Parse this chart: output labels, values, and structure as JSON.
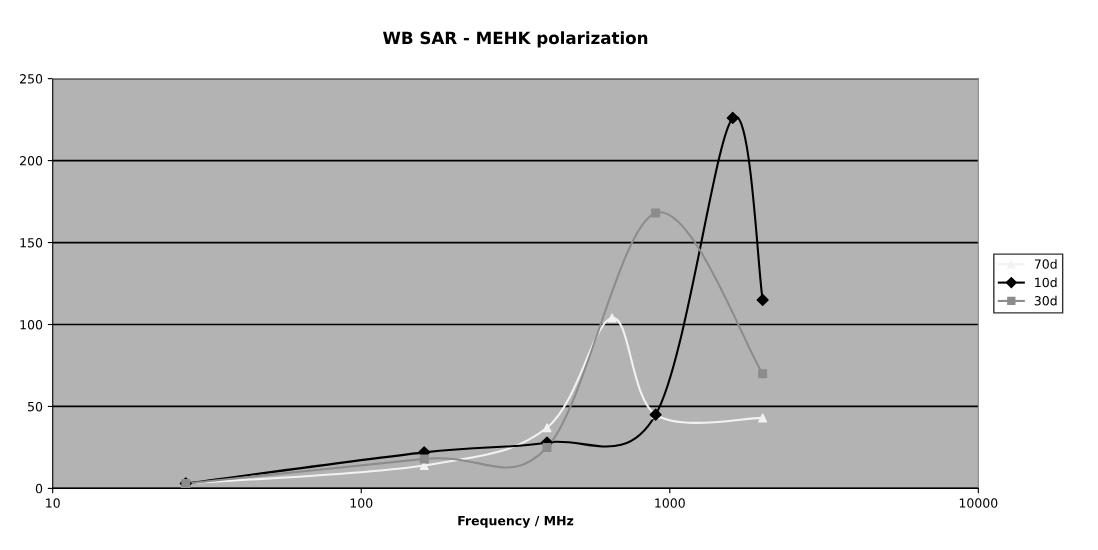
{
  "chart_data": {
    "type": "line",
    "title": "WB SAR - MEHK polarization",
    "xlabel": "Frequency / MHz",
    "log": "x",
    "xlim": [
      10,
      10000
    ],
    "xticks": [
      10,
      100,
      1000,
      10000
    ],
    "ylim": [
      0,
      250
    ],
    "yticks": [
      0,
      50,
      100,
      150,
      200,
      250
    ],
    "grid": "y",
    "legend": "right",
    "line_style": "solid",
    "series": [
      {
        "name": "70d",
        "color": "#f2f2f2",
        "marker": "triangle",
        "x": [
          27,
          160,
          400,
          650,
          900,
          2000
        ],
        "values": [
          3,
          14,
          37,
          104,
          45,
          43
        ]
      },
      {
        "name": "10d",
        "color": "#000000",
        "marker": "diamond",
        "x": [
          27,
          160,
          400,
          900,
          1600,
          2000
        ],
        "values": [
          3,
          22,
          28,
          45,
          226,
          115
        ]
      },
      {
        "name": "30d",
        "color": "#8c8c8c",
        "marker": "square",
        "x": [
          27,
          160,
          400,
          900,
          2000
        ],
        "values": [
          3,
          18,
          25,
          168,
          70
        ]
      }
    ]
  }
}
